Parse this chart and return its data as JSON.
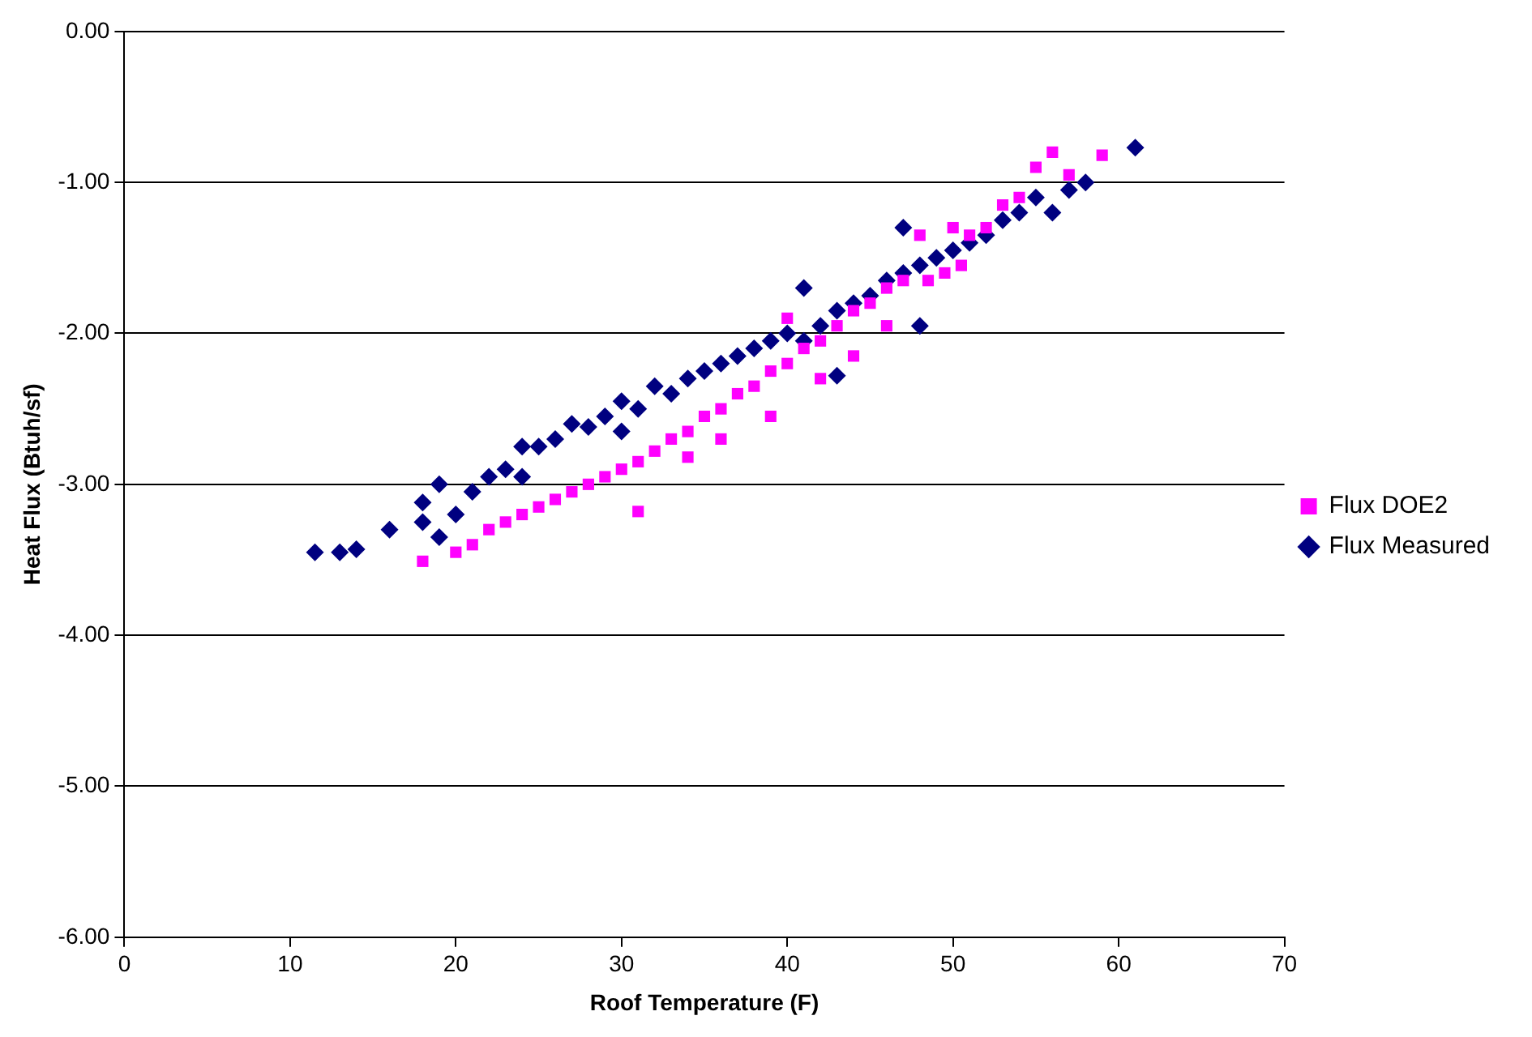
{
  "chart_data": {
    "type": "scatter",
    "xlabel": "Roof Temperature (F)",
    "ylabel": "Heat Flux (Btuh/sf)",
    "xlim": [
      0,
      70
    ],
    "xticks": [
      0,
      10,
      20,
      30,
      40,
      50,
      60,
      70
    ],
    "ylim": [
      -6,
      0
    ],
    "yticks": [
      {
        "value": 0,
        "label": "0.00"
      },
      {
        "value": -1,
        "label": "-1.00"
      },
      {
        "value": -2,
        "label": "-2.00"
      },
      {
        "value": -3,
        "label": "-3.00"
      },
      {
        "value": -4,
        "label": "-4.00"
      },
      {
        "value": -5,
        "label": "-5.00"
      },
      {
        "value": -6,
        "label": "-6.00"
      }
    ],
    "grid": "y",
    "legend": "right",
    "series": [
      {
        "name": "Flux DOE2",
        "color": "#ff00ff",
        "marker": "square",
        "x": [
          18,
          20,
          21,
          22,
          23,
          24,
          25,
          26,
          27,
          28,
          29,
          30,
          31,
          31,
          32,
          33,
          34,
          34,
          35,
          36,
          36,
          37,
          38,
          39,
          39,
          40,
          40,
          41,
          42,
          42,
          43,
          44,
          44,
          45,
          46,
          46,
          47,
          48.5,
          48,
          49.5,
          50.5,
          50,
          51,
          52,
          53,
          54,
          55,
          56,
          57,
          59
        ],
        "values": [
          -3.51,
          -3.45,
          -3.4,
          -3.3,
          -3.25,
          -3.2,
          -3.15,
          -3.1,
          -3.05,
          -3.0,
          -2.95,
          -2.9,
          -3.18,
          -2.85,
          -2.78,
          -2.7,
          -2.65,
          -2.82,
          -2.55,
          -2.5,
          -2.7,
          -2.4,
          -2.35,
          -2.55,
          -2.25,
          -2.2,
          -1.9,
          -2.1,
          -2.05,
          -2.3,
          -1.95,
          -1.85,
          -2.15,
          -1.8,
          -1.7,
          -1.95,
          -1.65,
          -1.65,
          -1.35,
          -1.6,
          -1.55,
          -1.3,
          -1.35,
          -1.3,
          -1.15,
          -1.1,
          -0.9,
          -0.8,
          -0.95,
          -0.82
        ]
      },
      {
        "name": "Flux Measured",
        "color": "#000080",
        "marker": "diamond",
        "x": [
          11.5,
          13,
          14,
          16,
          18,
          18,
          19,
          19,
          20,
          21,
          22,
          23,
          24,
          24,
          25,
          26,
          27,
          28,
          29,
          30,
          30,
          31,
          32,
          33,
          34,
          35,
          36,
          37,
          38,
          39,
          40,
          41,
          41,
          42,
          43,
          43,
          44,
          45,
          46,
          47,
          47,
          48,
          48,
          49,
          50,
          51,
          52,
          53,
          54,
          55,
          56,
          57,
          58,
          61
        ],
        "values": [
          -3.45,
          -3.45,
          -3.43,
          -3.3,
          -3.12,
          -3.25,
          -3.35,
          -3.0,
          -3.2,
          -3.05,
          -2.95,
          -2.9,
          -2.75,
          -2.95,
          -2.75,
          -2.7,
          -2.6,
          -2.62,
          -2.55,
          -2.45,
          -2.65,
          -2.5,
          -2.35,
          -2.4,
          -2.3,
          -2.25,
          -2.2,
          -2.15,
          -2.1,
          -2.05,
          -2.0,
          -1.7,
          -2.05,
          -1.95,
          -1.85,
          -2.28,
          -1.8,
          -1.75,
          -1.65,
          -1.3,
          -1.6,
          -1.55,
          -1.95,
          -1.5,
          -1.45,
          -1.4,
          -1.35,
          -1.25,
          -1.2,
          -1.1,
          -1.2,
          -1.05,
          -1.0,
          -0.77
        ]
      }
    ]
  }
}
